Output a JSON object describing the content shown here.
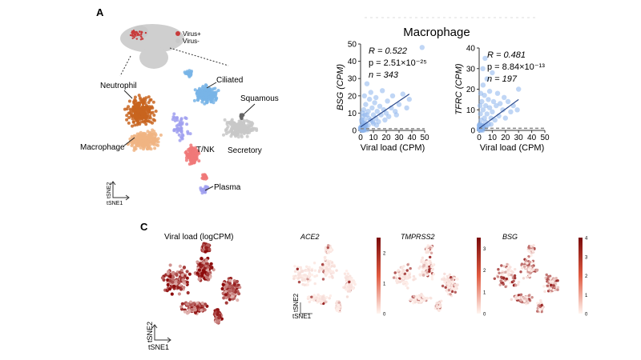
{
  "panel_a": {
    "letter": "A",
    "legend": {
      "virus_pos": "Virus+",
      "virus_neg": "Virus-",
      "color_pos": "#c83c3c",
      "color_neg": "#c8c8c8"
    },
    "cell_types": [
      "Neutrophil",
      "Ciliated",
      "Squamous",
      "Macrophage",
      "T/NK",
      "Secretory",
      "Plasma"
    ],
    "axis": {
      "y": "tSNE2",
      "x": "tSNE1"
    },
    "colors": {
      "neutrophil": "#c8641e",
      "macrophage": "#f0b482",
      "ciliated": "#78b4e6",
      "tnk": "#f07878",
      "secretory": "#c8c8c8",
      "squamous": "#646464",
      "plasma": "#a0a0f0"
    }
  },
  "scatter_title": "Macrophage",
  "chart_data": [
    {
      "type": "scatter",
      "title": "",
      "xlabel": "Viral load (CPM)",
      "ylabel": "BSG (CPM)",
      "xlim": [
        0,
        50
      ],
      "ylim": [
        0,
        50
      ],
      "xticks": [
        0,
        10,
        20,
        30,
        40,
        50
      ],
      "yticks": [
        0,
        10,
        20,
        30,
        40,
        50
      ],
      "annotations": [
        "R = 0.522",
        "p = 2.51×10⁻²⁵",
        "n = 343"
      ],
      "fit_line": {
        "x": [
          0,
          38
        ],
        "y": [
          2,
          21
        ]
      },
      "points": [
        [
          0.5,
          2
        ],
        [
          1,
          5
        ],
        [
          1.5,
          8
        ],
        [
          2,
          3
        ],
        [
          2.5,
          12
        ],
        [
          3,
          6
        ],
        [
          3,
          20
        ],
        [
          4,
          4
        ],
        [
          4,
          15
        ],
        [
          5,
          9
        ],
        [
          5,
          27
        ],
        [
          6,
          3
        ],
        [
          6,
          11
        ],
        [
          7,
          18
        ],
        [
          8,
          6
        ],
        [
          8,
          22
        ],
        [
          9,
          13
        ],
        [
          10,
          4
        ],
        [
          10,
          9
        ],
        [
          11,
          16
        ],
        [
          12,
          7
        ],
        [
          12,
          19
        ],
        [
          13,
          11
        ],
        [
          14,
          5
        ],
        [
          15,
          14
        ],
        [
          16,
          9
        ],
        [
          17,
          23
        ],
        [
          18,
          12
        ],
        [
          19,
          6
        ],
        [
          20,
          10
        ],
        [
          21,
          17
        ],
        [
          22,
          8
        ],
        [
          24,
          13
        ],
        [
          25,
          20
        ],
        [
          27,
          11
        ],
        [
          28,
          9
        ],
        [
          30,
          15
        ],
        [
          33,
          21
        ],
        [
          36,
          13
        ],
        [
          38,
          18
        ],
        [
          1,
          1
        ],
        [
          2,
          1
        ],
        [
          3,
          2
        ],
        [
          1.5,
          10
        ],
        [
          0.8,
          6
        ],
        [
          2.2,
          4
        ],
        [
          3.5,
          9
        ],
        [
          6.5,
          7
        ],
        [
          9.5,
          5
        ],
        [
          12.5,
          3
        ],
        [
          48,
          48
        ]
      ],
      "baseline_y": 1
    },
    {
      "type": "scatter",
      "title": "",
      "xlabel": "Viral load (CPM)",
      "ylabel": "TFRC (CPM)",
      "xlim": [
        0,
        50
      ],
      "ylim": [
        0,
        40
      ],
      "xticks": [
        0,
        10,
        20,
        30,
        40,
        50
      ],
      "yticks": [
        0,
        10,
        20,
        30,
        40
      ],
      "annotations": [
        "R = 0.481",
        "p = 8.84×10⁻¹³",
        "n = 197"
      ],
      "fit_line": {
        "x": [
          0,
          30
        ],
        "y": [
          1,
          15
        ]
      },
      "points": [
        [
          0.5,
          3
        ],
        [
          1,
          8
        ],
        [
          1.5,
          5
        ],
        [
          2,
          14
        ],
        [
          2.5,
          2
        ],
        [
          3,
          10
        ],
        [
          3,
          22
        ],
        [
          4,
          6
        ],
        [
          4,
          17
        ],
        [
          5,
          4
        ],
        [
          5,
          12
        ],
        [
          6,
          8
        ],
        [
          6,
          25
        ],
        [
          7,
          3
        ],
        [
          7,
          15
        ],
        [
          8,
          11
        ],
        [
          8,
          19
        ],
        [
          9,
          6
        ],
        [
          10,
          9
        ],
        [
          10,
          28
        ],
        [
          11,
          14
        ],
        [
          12,
          5
        ],
        [
          13,
          12
        ],
        [
          14,
          18
        ],
        [
          15,
          7
        ],
        [
          16,
          13
        ],
        [
          18,
          10
        ],
        [
          19,
          16
        ],
        [
          20,
          6
        ],
        [
          22,
          14
        ],
        [
          24,
          9
        ],
        [
          26,
          12
        ],
        [
          29,
          10
        ],
        [
          30,
          20
        ],
        [
          1,
          1
        ],
        [
          2,
          1
        ],
        [
          3,
          2
        ],
        [
          1.2,
          18
        ],
        [
          2.8,
          30
        ],
        [
          4.5,
          35
        ],
        [
          0.7,
          12
        ],
        [
          5.5,
          2
        ],
        [
          9,
          3
        ]
      ],
      "baseline_y": 1
    },
    {
      "type": "heatmap",
      "title": "ACE2",
      "colorbar_ticks": [
        "2",
        "1",
        "0"
      ],
      "range": [
        0,
        2.5
      ]
    },
    {
      "type": "heatmap",
      "title": "TMPRSS2",
      "colorbar_ticks": [
        "3",
        "2",
        "1",
        "0"
      ],
      "range": [
        0,
        3.5
      ]
    },
    {
      "type": "heatmap",
      "title": "BSG",
      "colorbar_ticks": [
        "4",
        "3",
        "2",
        "1",
        "0"
      ],
      "range": [
        0,
        4
      ]
    }
  ],
  "panel_c": {
    "letter": "C",
    "viral_title": "Viral load (logCPM)",
    "axis": {
      "y": "tSNE2",
      "x": "tSNE1"
    }
  }
}
